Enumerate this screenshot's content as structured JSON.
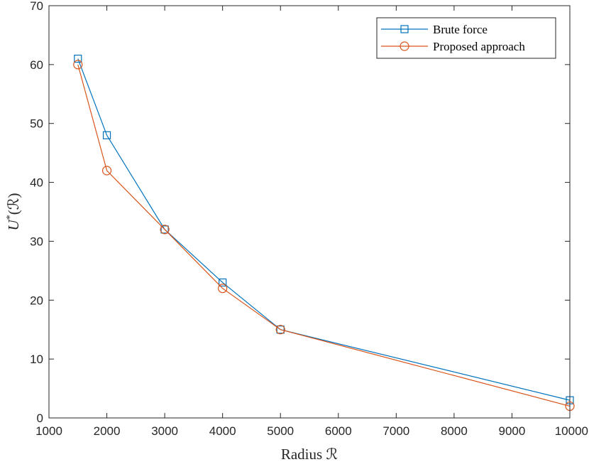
{
  "chart_data": {
    "type": "line",
    "xlabel": "Radius ℛ",
    "ylabel_main": "U",
    "ylabel_sup": "*",
    "ylabel_tail": "(ℛ)",
    "xlim": [
      1000,
      10000
    ],
    "ylim": [
      0,
      70
    ],
    "xticks": [
      1000,
      2000,
      3000,
      4000,
      5000,
      6000,
      7000,
      8000,
      9000,
      10000
    ],
    "yticks": [
      0,
      10,
      20,
      30,
      40,
      50,
      60,
      70
    ],
    "grid": false,
    "legend_position": "top-right",
    "series": [
      {
        "name": "Brute force",
        "color": "#0072BD",
        "marker": "square",
        "x": [
          1500,
          2000,
          3000,
          4000,
          5000,
          10000
        ],
        "y": [
          61,
          48,
          32,
          23,
          15,
          3
        ]
      },
      {
        "name": "Proposed approach",
        "color": "#D95319",
        "marker": "circle",
        "x": [
          1500,
          2000,
          3000,
          4000,
          5000,
          10000
        ],
        "y": [
          60,
          42,
          32,
          22,
          15,
          2
        ]
      }
    ]
  }
}
